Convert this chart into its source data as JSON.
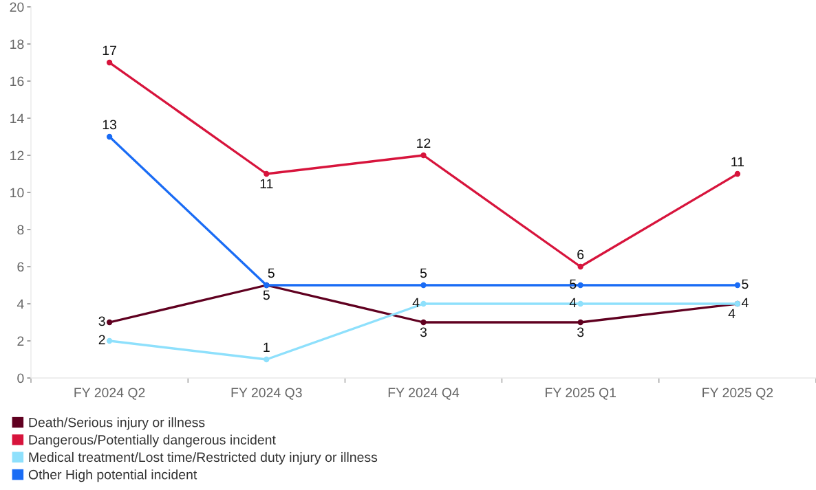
{
  "chart_data": {
    "type": "line",
    "categories": [
      "FY 2024 Q2",
      "FY 2024 Q3",
      "FY 2024 Q4",
      "FY 2025 Q1",
      "FY 2025 Q2"
    ],
    "series": [
      {
        "name": "Death/Serious injury or illness",
        "color": "#600020",
        "values": [
          3,
          5,
          3,
          3,
          4
        ]
      },
      {
        "name": "Dangerous/Potentially dangerous incident",
        "color": "#d7143c",
        "values": [
          17,
          11,
          12,
          6,
          11
        ]
      },
      {
        "name": "Medical treatment/Lost time/Restricted duty injury or illness",
        "color": "#8ee0fc",
        "values": [
          2,
          1,
          4,
          4,
          4
        ]
      },
      {
        "name": "Other High potential incident",
        "color": "#1a6cf5",
        "values": [
          13,
          5,
          5,
          5,
          5
        ]
      }
    ],
    "ylim": [
      0,
      20
    ],
    "yticks": [
      0,
      2,
      4,
      6,
      8,
      10,
      12,
      14,
      16,
      18,
      20
    ],
    "grid": false,
    "legend": "bottom left",
    "marker": "circle",
    "line_style": "solid",
    "data_labels": true
  }
}
